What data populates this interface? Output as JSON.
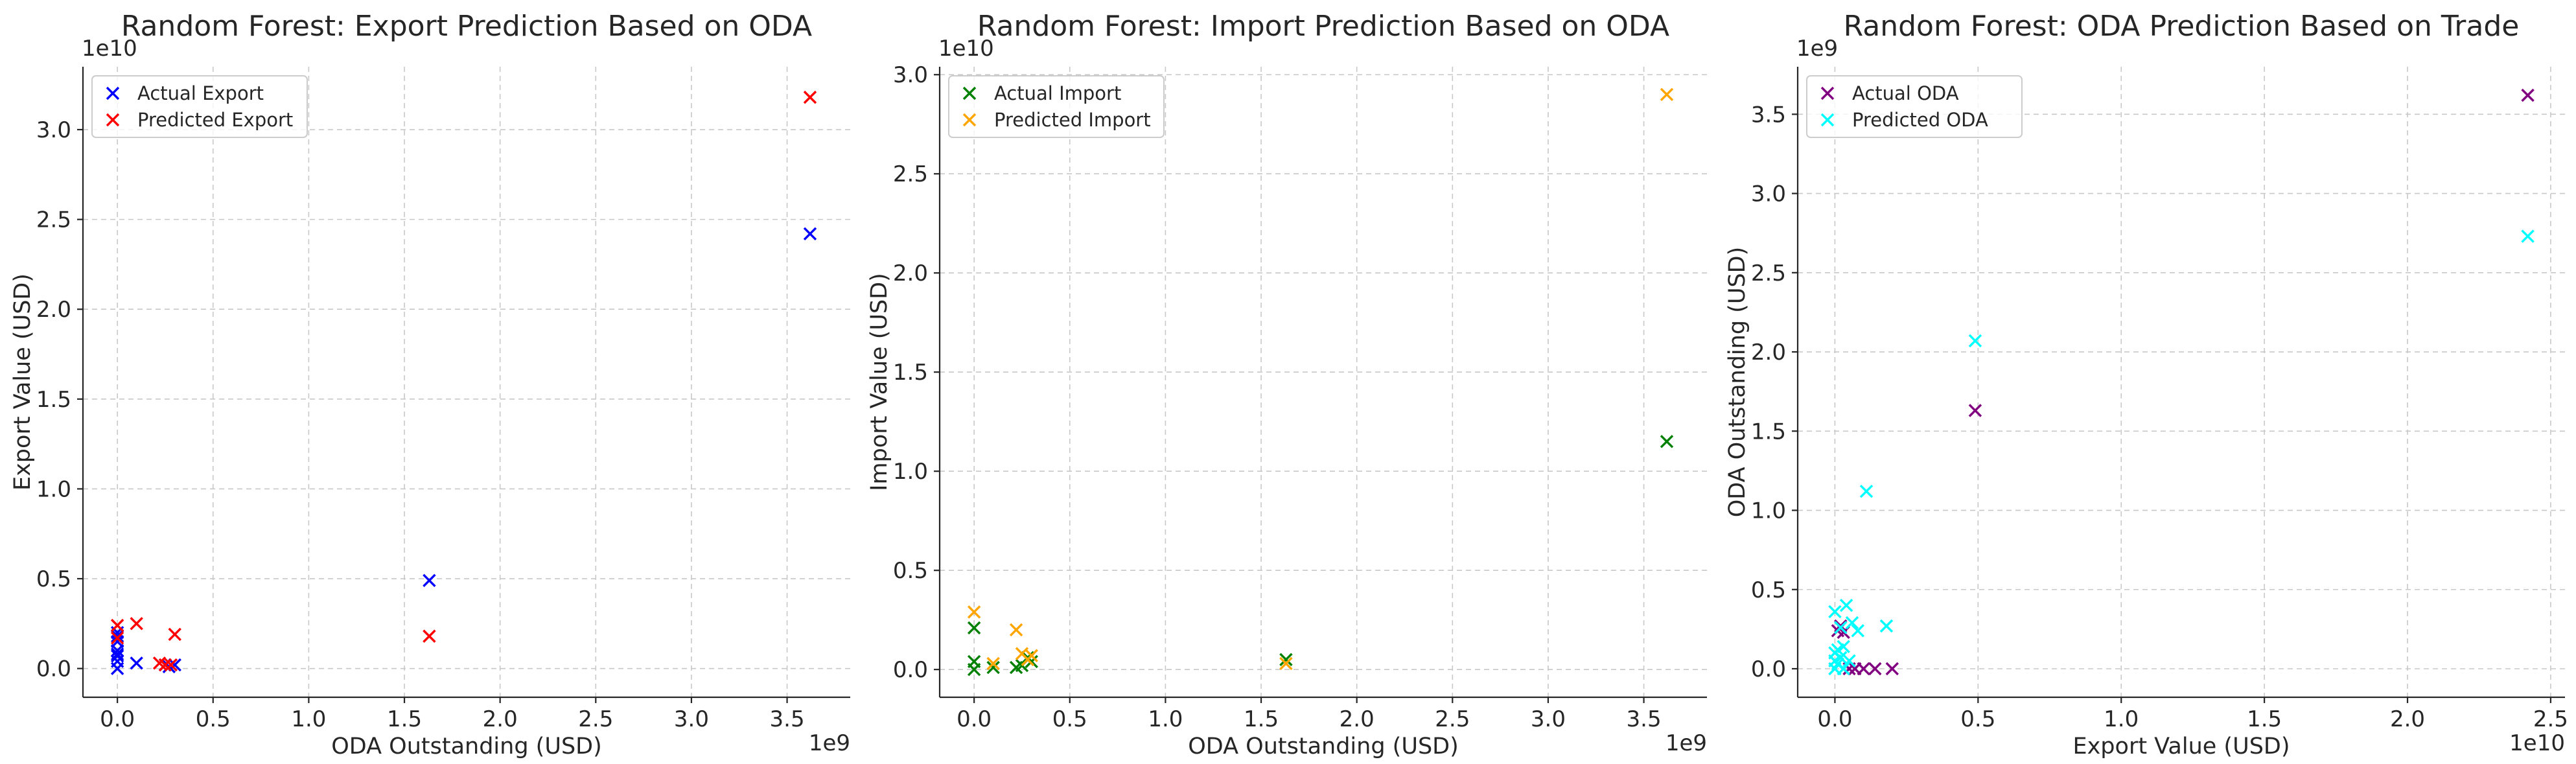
{
  "chart_data": [
    {
      "type": "scatter",
      "title": "Random Forest: Export Prediction Based on ODA",
      "xlabel": "ODA Outstanding (USD)",
      "ylabel": "Export Value (USD)",
      "x_offset_label": "1e9",
      "y_offset_label": "1e10",
      "xlim": [
        -0.18,
        3.83
      ],
      "ylim": [
        -0.16,
        3.35
      ],
      "xticks": [
        0.0,
        0.5,
        1.0,
        1.5,
        2.0,
        2.5,
        3.0,
        3.5
      ],
      "xtick_labels": [
        "0.0",
        "0.5",
        "1.0",
        "1.5",
        "2.0",
        "2.5",
        "3.0",
        "3.5"
      ],
      "yticks": [
        0.0,
        0.5,
        1.0,
        1.5,
        2.0,
        2.5,
        3.0
      ],
      "ytick_labels": [
        "0.0",
        "0.5",
        "1.0",
        "1.5",
        "2.0",
        "2.5",
        "3.0"
      ],
      "grid": true,
      "legend": "upper-left",
      "series": [
        {
          "name": "Actual Export",
          "color": "#0000ff",
          "marker": "x",
          "x": [
            0.0,
            0.0,
            0.0,
            0.0,
            0.0,
            0.0,
            0.0,
            0.0,
            0.1,
            0.25,
            0.27,
            0.3,
            1.63,
            3.62
          ],
          "y": [
            0.0,
            0.04,
            0.07,
            0.1,
            0.15,
            0.18,
            0.2,
            0.08,
            0.03,
            0.02,
            0.01,
            0.02,
            0.49,
            2.42
          ]
        },
        {
          "name": "Predicted Export",
          "color": "#ff0000",
          "marker": "x",
          "x": [
            0.0,
            0.0,
            0.1,
            0.22,
            0.25,
            0.28,
            0.3,
            1.63,
            3.62
          ],
          "y": [
            0.24,
            0.17,
            0.25,
            0.03,
            0.02,
            0.02,
            0.19,
            0.18,
            3.18
          ]
        }
      ]
    },
    {
      "type": "scatter",
      "title": "Random Forest: Import Prediction Based on ODA",
      "xlabel": "ODA Outstanding (USD)",
      "ylabel": "Import Value (USD)",
      "x_offset_label": "1e9",
      "y_offset_label": "1e10",
      "xlim": [
        -0.18,
        3.83
      ],
      "ylim": [
        -0.14,
        3.04
      ],
      "xticks": [
        0.0,
        0.5,
        1.0,
        1.5,
        2.0,
        2.5,
        3.0,
        3.5
      ],
      "xtick_labels": [
        "0.0",
        "0.5",
        "1.0",
        "1.5",
        "2.0",
        "2.5",
        "3.0",
        "3.5"
      ],
      "yticks": [
        0.0,
        0.5,
        1.0,
        1.5,
        2.0,
        2.5,
        3.0
      ],
      "ytick_labels": [
        "0.0",
        "0.5",
        "1.0",
        "1.5",
        "2.0",
        "2.5",
        "3.0"
      ],
      "grid": true,
      "legend": "upper-left",
      "series": [
        {
          "name": "Actual Import",
          "color": "#008000",
          "marker": "x",
          "x": [
            0.0,
            0.0,
            0.0,
            0.1,
            0.22,
            0.25,
            0.28,
            0.3,
            1.63,
            3.62
          ],
          "y": [
            0.0,
            0.04,
            0.21,
            0.01,
            0.01,
            0.02,
            0.06,
            0.04,
            0.05,
            1.15
          ],
          "note": ""
        },
        {
          "name": "Predicted Import",
          "color": "#ffa500",
          "marker": "x",
          "x": [
            0.0,
            0.1,
            0.22,
            0.25,
            0.28,
            0.3,
            1.63,
            3.62
          ],
          "y": [
            0.29,
            0.03,
            0.2,
            0.08,
            0.05,
            0.07,
            0.03,
            2.9
          ]
        }
      ]
    },
    {
      "type": "scatter",
      "title": "Random Forest: ODA Prediction Based on Trade",
      "xlabel": "Export Value (USD)",
      "ylabel": "ODA Outstanding (USD)",
      "x_offset_label": "1e10",
      "y_offset_label": "1e9",
      "xlim": [
        -0.13,
        2.55
      ],
      "ylim": [
        -0.18,
        3.8
      ],
      "xticks": [
        0.0,
        0.5,
        1.0,
        1.5,
        2.0,
        2.5
      ],
      "xtick_labels": [
        "0.0",
        "0.5",
        "1.0",
        "1.5",
        "2.0",
        "2.5"
      ],
      "yticks": [
        0.0,
        0.5,
        1.0,
        1.5,
        2.0,
        2.5,
        3.0,
        3.5
      ],
      "ytick_labels": [
        "0.0",
        "0.5",
        "1.0",
        "1.5",
        "2.0",
        "2.5",
        "3.0",
        "3.5"
      ],
      "grid": true,
      "legend": "upper-left",
      "series": [
        {
          "name": "Actual ODA",
          "color": "#800080",
          "marker": "x",
          "x": [
            0.01,
            0.02,
            0.03,
            0.05,
            0.07,
            0.1,
            0.14,
            0.2,
            0.49,
            2.42
          ],
          "y": [
            0.24,
            0.27,
            0.23,
            0.0,
            0.0,
            0.0,
            0.0,
            0.0,
            1.63,
            3.62
          ]
        },
        {
          "name": "Predicted ODA",
          "color": "#00ffff",
          "marker": "x",
          "x": [
            0.0,
            0.0,
            0.0,
            0.0,
            0.01,
            0.01,
            0.02,
            0.02,
            0.03,
            0.03,
            0.04,
            0.05,
            0.06,
            0.08,
            0.11,
            0.18,
            0.49,
            2.42
          ],
          "y": [
            0.0,
            0.05,
            0.1,
            0.36,
            0.03,
            0.12,
            0.07,
            0.26,
            0.0,
            0.14,
            0.4,
            0.05,
            0.29,
            0.24,
            1.12,
            0.27,
            2.07,
            2.73
          ]
        }
      ]
    }
  ]
}
